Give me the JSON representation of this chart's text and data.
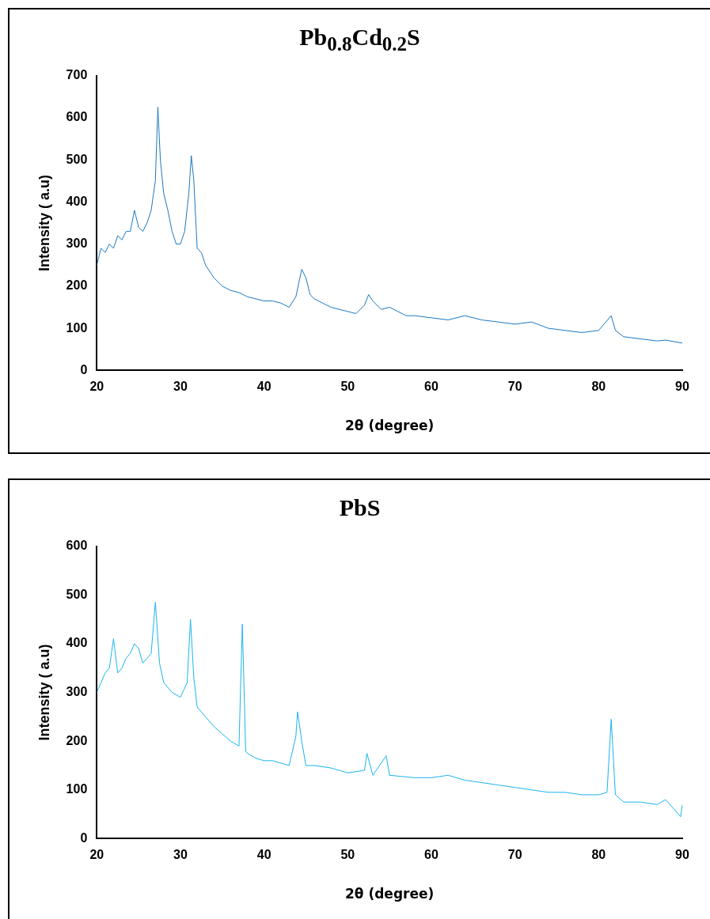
{
  "chart_data": [
    {
      "type": "line",
      "title": "Pb$_{0.8}$Cd$_{0.2}$S",
      "xlabel": "2θ (degree)",
      "ylabel": "Intensity ( a.u)",
      "color": "#1a78c2",
      "marker": "none",
      "xlim": [
        20,
        90
      ],
      "xticks": [
        20,
        30,
        40,
        50,
        60,
        70,
        80,
        90
      ],
      "ylim": [
        0,
        700
      ],
      "yticks": [
        0,
        100,
        200,
        300,
        400,
        500,
        600,
        700
      ],
      "x": [
        20,
        20.5,
        21,
        21.5,
        22,
        22.5,
        23,
        23.5,
        24,
        24.5,
        25,
        25.5,
        26,
        26.5,
        27,
        27.3,
        27.6,
        28,
        28.5,
        29,
        29.5,
        30,
        30.5,
        31,
        31.3,
        31.6,
        32,
        32.5,
        33,
        34,
        35,
        36,
        37,
        38,
        39,
        40,
        41,
        42,
        43,
        43.8,
        44.5,
        45,
        45.5,
        46,
        47,
        48,
        49,
        50,
        51,
        52,
        52.5,
        53,
        54,
        55,
        56,
        57,
        58,
        60,
        62,
        64,
        66,
        68,
        70,
        72,
        74,
        76,
        78,
        80,
        81.5,
        82,
        83,
        85,
        87,
        88,
        90
      ],
      "values": [
        250,
        290,
        280,
        300,
        290,
        320,
        310,
        330,
        330,
        380,
        340,
        330,
        350,
        380,
        450,
        625,
        500,
        420,
        380,
        330,
        300,
        300,
        330,
        420,
        510,
        450,
        290,
        280,
        250,
        220,
        200,
        190,
        185,
        175,
        170,
        165,
        165,
        160,
        150,
        175,
        240,
        220,
        180,
        170,
        160,
        150,
        145,
        140,
        135,
        155,
        180,
        165,
        145,
        150,
        140,
        130,
        130,
        125,
        120,
        130,
        120,
        115,
        110,
        115,
        100,
        95,
        90,
        95,
        130,
        95,
        80,
        75,
        70,
        72,
        65
      ]
    },
    {
      "type": "line",
      "title": "PbS",
      "xlabel": "2θ (degree)",
      "ylabel": "Intensity ( a.u)",
      "color": "#1ab4ee",
      "marker": "none",
      "xlim": [
        20,
        90
      ],
      "xticks": [
        20,
        30,
        40,
        50,
        60,
        70,
        80,
        90
      ],
      "ylim": [
        0,
        600
      ],
      "yticks": [
        0,
        100,
        200,
        300,
        400,
        500,
        600
      ],
      "x": [
        20,
        20.5,
        21,
        21.5,
        22,
        22.5,
        23,
        23.5,
        24,
        24.5,
        25,
        25.5,
        26,
        26.5,
        27,
        27.5,
        28,
        29,
        30,
        30.8,
        31.2,
        31.6,
        32,
        33,
        34,
        35,
        36,
        37,
        37.4,
        37.8,
        38,
        39,
        40,
        41,
        42,
        43,
        43.8,
        44,
        44.5,
        45,
        46,
        48,
        50,
        52,
        52.3,
        53,
        54.6,
        55,
        58,
        60,
        62,
        64,
        66,
        68,
        70,
        72,
        74,
        76,
        78,
        80,
        81,
        81.5,
        82,
        83,
        85,
        87,
        88,
        89.8,
        90
      ],
      "values": [
        300,
        320,
        340,
        350,
        410,
        340,
        350,
        370,
        380,
        400,
        390,
        360,
        370,
        380,
        485,
        360,
        320,
        300,
        290,
        320,
        450,
        330,
        270,
        250,
        230,
        215,
        200,
        190,
        440,
        180,
        175,
        165,
        160,
        160,
        155,
        150,
        210,
        260,
        200,
        150,
        150,
        145,
        135,
        140,
        175,
        130,
        170,
        130,
        125,
        125,
        130,
        120,
        115,
        110,
        105,
        100,
        95,
        95,
        90,
        90,
        95,
        245,
        90,
        75,
        75,
        70,
        80,
        45,
        70
      ]
    }
  ]
}
